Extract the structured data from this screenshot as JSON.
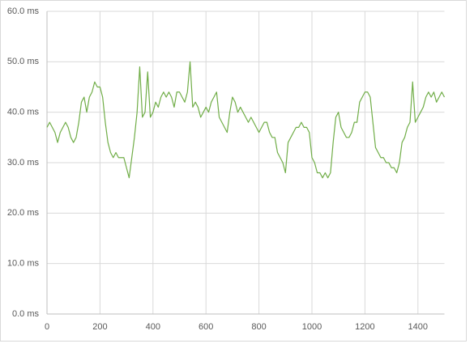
{
  "chart_data": {
    "type": "line",
    "x": [
      0,
      10,
      20,
      30,
      40,
      50,
      60,
      70,
      80,
      90,
      100,
      110,
      120,
      130,
      140,
      150,
      160,
      170,
      180,
      190,
      200,
      210,
      220,
      230,
      240,
      250,
      260,
      270,
      280,
      290,
      300,
      310,
      320,
      330,
      340,
      350,
      360,
      370,
      380,
      390,
      400,
      410,
      420,
      430,
      440,
      450,
      460,
      470,
      480,
      490,
      500,
      510,
      520,
      530,
      540,
      550,
      560,
      570,
      580,
      590,
      600,
      610,
      620,
      630,
      640,
      650,
      660,
      670,
      680,
      690,
      700,
      710,
      720,
      730,
      740,
      750,
      760,
      770,
      780,
      790,
      800,
      810,
      820,
      830,
      840,
      850,
      860,
      870,
      880,
      890,
      900,
      910,
      920,
      930,
      940,
      950,
      960,
      970,
      980,
      990,
      1000,
      1010,
      1020,
      1030,
      1040,
      1050,
      1060,
      1070,
      1080,
      1090,
      1100,
      1110,
      1120,
      1130,
      1140,
      1150,
      1160,
      1170,
      1180,
      1190,
      1200,
      1210,
      1220,
      1230,
      1240,
      1250,
      1260,
      1270,
      1280,
      1290,
      1300,
      1310,
      1320,
      1330,
      1340,
      1350,
      1360,
      1370,
      1380,
      1390,
      1400,
      1410,
      1420,
      1430,
      1440,
      1450,
      1460,
      1470,
      1480,
      1490,
      1500
    ],
    "series": [
      {
        "color": "#70ad47",
        "values": [
          37,
          38,
          37,
          36,
          34,
          36,
          37,
          38,
          37,
          35,
          34,
          35,
          38,
          42,
          43,
          40,
          43,
          44,
          46,
          45,
          45,
          43,
          38,
          34,
          32,
          31,
          32,
          31,
          31,
          31,
          29,
          27,
          31,
          35,
          40,
          49,
          39,
          40,
          48,
          39,
          40,
          42,
          41,
          43,
          44,
          43,
          44,
          43,
          41,
          44,
          44,
          43,
          42,
          44,
          50,
          41,
          42,
          41,
          39,
          40,
          41,
          40,
          42,
          43,
          44,
          39,
          38,
          37,
          36,
          40,
          43,
          42,
          40,
          41,
          40,
          39,
          38,
          39,
          38,
          37,
          36,
          37,
          38,
          38,
          36,
          35,
          35,
          32,
          31,
          30,
          28,
          34,
          35,
          36,
          37,
          37,
          38,
          37,
          37,
          36,
          31,
          30,
          28,
          28,
          27,
          28,
          27,
          28,
          34,
          39,
          40,
          37,
          36,
          35,
          35,
          36,
          38,
          38,
          42,
          43,
          44,
          44,
          43,
          38,
          33,
          32,
          31,
          31,
          30,
          30,
          29,
          29,
          28,
          30,
          34,
          35,
          37,
          38,
          46,
          38,
          39,
          40,
          41,
          43,
          44,
          43,
          44,
          42,
          43,
          44,
          43
        ]
      }
    ],
    "xlim": [
      0,
      1500
    ],
    "xticks": [
      0,
      200,
      400,
      600,
      800,
      1000,
      1200,
      1400
    ],
    "ylim": [
      0,
      60
    ],
    "yticks": [
      {
        "value": 0,
        "label": "0.0 ms"
      },
      {
        "value": 10,
        "label": "10.0 ms"
      },
      {
        "value": 20,
        "label": "20.0 ms"
      },
      {
        "value": 30,
        "label": "30.0 ms"
      },
      {
        "value": 40,
        "label": "40.0 ms"
      },
      {
        "value": 50,
        "label": "50.0 ms"
      },
      {
        "value": 60,
        "label": "60.0 ms"
      }
    ],
    "grid": true
  }
}
